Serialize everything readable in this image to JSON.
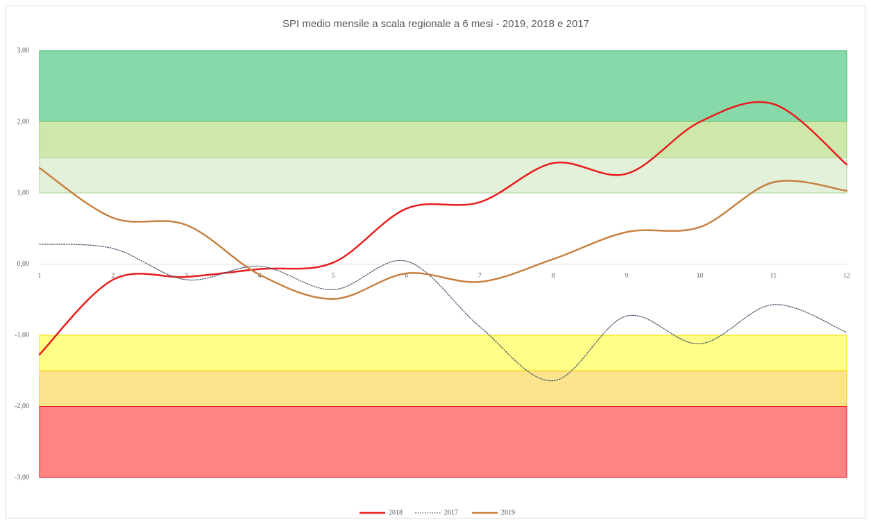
{
  "chart_data": {
    "type": "line",
    "title": "SPI medio mensile a scala regionale a 6 mesi - 2019, 2018 e 2017",
    "categories": [
      "1",
      "2",
      "3",
      "4",
      "5",
      "6",
      "7",
      "8",
      "9",
      "10",
      "11",
      "12"
    ],
    "series": [
      {
        "name": "2018",
        "color": "#e81c1c",
        "style": "solid",
        "values": [
          -1.27,
          -0.22,
          -0.18,
          -0.07,
          0.02,
          0.78,
          0.87,
          1.42,
          1.27,
          2.0,
          2.25,
          1.4
        ]
      },
      {
        "name": "2017",
        "color": "#44546a",
        "style": "dotted",
        "values": [
          0.28,
          0.22,
          -0.22,
          -0.03,
          -0.36,
          0.04,
          -0.88,
          -1.64,
          -0.73,
          -1.12,
          -0.57,
          -0.96
        ]
      },
      {
        "name": "2019",
        "color": "#c8803f",
        "style": "solid",
        "values": [
          1.35,
          0.65,
          0.55,
          -0.15,
          -0.49,
          -0.13,
          -0.25,
          0.07,
          0.45,
          0.52,
          1.15,
          1.03
        ]
      }
    ],
    "bands": [
      {
        "from": 2,
        "to": 3,
        "color": "#88d9aa",
        "stroke": "#2eb85c"
      },
      {
        "from": 1.5,
        "to": 2,
        "color": "#cde8aa",
        "stroke": "#8fcf5a"
      },
      {
        "from": 1,
        "to": 1.5,
        "color": "#e3f0da",
        "stroke": "#a9d18e"
      },
      {
        "from": -1.5,
        "to": -1,
        "color": "#ffff88",
        "stroke": "#f2e200"
      },
      {
        "from": -2,
        "to": -1.5,
        "color": "#fde48c",
        "stroke": "#f5c400"
      },
      {
        "from": -3,
        "to": -2,
        "color": "#ff8383",
        "stroke": "#e01010"
      }
    ],
    "ylim": [
      -3,
      3
    ],
    "yticks": [
      {
        "value": 3,
        "label": "3,00"
      },
      {
        "value": 2,
        "label": "2,00"
      },
      {
        "value": 1,
        "label": "1,00"
      },
      {
        "value": 0,
        "label": "0,00"
      },
      {
        "value": -1,
        "label": "-1,00"
      },
      {
        "value": -2,
        "label": "-2,00"
      },
      {
        "value": -3,
        "label": "-3,00"
      }
    ],
    "legend": "bottom"
  }
}
